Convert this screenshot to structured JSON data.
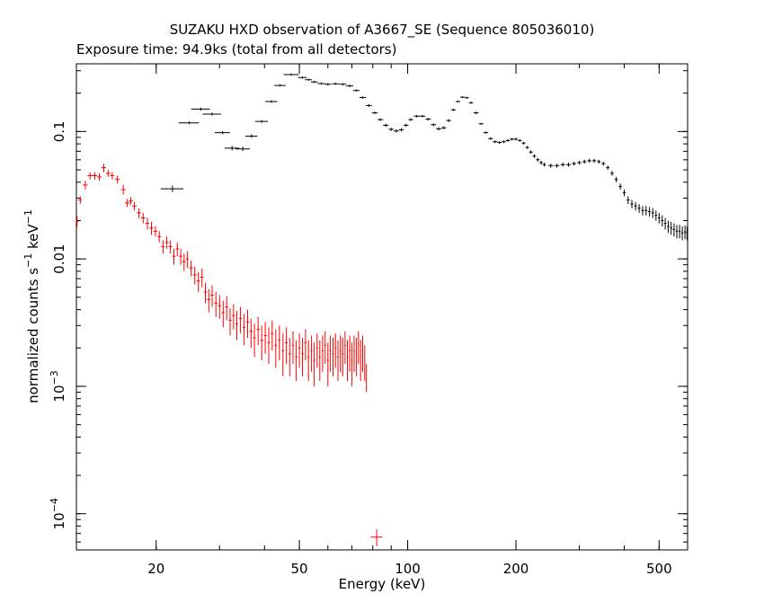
{
  "chart_data": {
    "type": "scatter",
    "title": "SUZAKU HXD observation of A3667_SE (Sequence 805036010)",
    "subtitle": "Exposure time: 94.9ks (total from all detectors)",
    "xlabel": "Energy (keV)",
    "ylabel_base": "normalized counts s",
    "ylabel_mid": " keV",
    "ylabel_sup": "−1",
    "x_scale": "log",
    "y_scale": "log",
    "xlim": [
      12,
      600
    ],
    "ylim": [
      5.2e-05,
      0.34
    ],
    "x_ticks": [
      {
        "value": 20,
        "label": "20"
      },
      {
        "value": 50,
        "label": "50"
      },
      {
        "value": 100,
        "label": "100"
      },
      {
        "value": 200,
        "label": "200"
      },
      {
        "value": 500,
        "label": "500"
      }
    ],
    "y_ticks": [
      {
        "value": 0.1,
        "label": "0.1"
      },
      {
        "value": 0.01,
        "label": "0.01"
      },
      {
        "value": 0.001,
        "label_base": "10",
        "label_exp": "−3"
      },
      {
        "value": 0.0001,
        "label_base": "10",
        "label_exp": "−4"
      }
    ],
    "series": [
      {
        "color": "#000000",
        "points": [
          [
            22.2,
            0.0355,
            1.6,
            0.002
          ],
          [
            24.7,
            0.117,
            1.6,
            0.003
          ],
          [
            26.6,
            0.15,
            1.6,
            0.004
          ],
          [
            28.6,
            0.137,
            1.7,
            0.004
          ],
          [
            30.6,
            0.098,
            1.5,
            0.003
          ],
          [
            32.5,
            0.074,
            1.5,
            0.003
          ],
          [
            34.8,
            0.073,
            1.6,
            0.003
          ],
          [
            36.8,
            0.092,
            1.4,
            0.003
          ],
          [
            39.3,
            0.12,
            1.6,
            0.003
          ],
          [
            41.8,
            0.172,
            1.6,
            0.004
          ],
          [
            44.2,
            0.23,
            1.6,
            0.005
          ],
          [
            47.5,
            0.28,
            2.3,
            0.006
          ],
          [
            51,
            0.265,
            1.4,
            0.005
          ],
          [
            53,
            0.255,
            1.2,
            0.005
          ],
          [
            55,
            0.245,
            1.2,
            0.005
          ],
          [
            57.5,
            0.238,
            1.3,
            0.005
          ],
          [
            60,
            0.235,
            1.3,
            0.005
          ],
          [
            63,
            0.237,
            1.4,
            0.005
          ],
          [
            66,
            0.235,
            1.5,
            0.005
          ],
          [
            69,
            0.228,
            1.6,
            0.005
          ],
          [
            72,
            0.21,
            1.5,
            0.004
          ],
          [
            75,
            0.185,
            1.5,
            0.004
          ],
          [
            78,
            0.16,
            1.5,
            0.004
          ],
          [
            81,
            0.14,
            1.5,
            0.003
          ],
          [
            84,
            0.124,
            1.5,
            0.003
          ],
          [
            87,
            0.112,
            1.5,
            0.003
          ],
          [
            90,
            0.104,
            1.5,
            0.003
          ],
          [
            93,
            0.101,
            1.5,
            0.003
          ],
          [
            96,
            0.103,
            1.5,
            0.003
          ],
          [
            99,
            0.112,
            1.5,
            0.003
          ],
          [
            102,
            0.124,
            1.5,
            0.003
          ],
          [
            106,
            0.132,
            2,
            0.003
          ],
          [
            110,
            0.132,
            2,
            0.003
          ],
          [
            114,
            0.125,
            2,
            0.003
          ],
          [
            118,
            0.113,
            2,
            0.003
          ],
          [
            122,
            0.105,
            2,
            0.003
          ],
          [
            126,
            0.107,
            2,
            0.003
          ],
          [
            130,
            0.122,
            2,
            0.003
          ],
          [
            134,
            0.148,
            2,
            0.003
          ],
          [
            138,
            0.172,
            2,
            0.003
          ],
          [
            142,
            0.186,
            2,
            0.003
          ],
          [
            146,
            0.184,
            2,
            0.003
          ],
          [
            150,
            0.168,
            2,
            0.003
          ],
          [
            155,
            0.14,
            2.5,
            0.003
          ],
          [
            160,
            0.115,
            2.5,
            0.002
          ],
          [
            165,
            0.098,
            2.5,
            0.002
          ],
          [
            170,
            0.088,
            2.5,
            0.002
          ],
          [
            175,
            0.083,
            2.5,
            0.002
          ],
          [
            180,
            0.082,
            2.5,
            0.002
          ],
          [
            185,
            0.083,
            2.5,
            0.002
          ],
          [
            190,
            0.085,
            2.5,
            0.002
          ],
          [
            195,
            0.087,
            2.5,
            0.002
          ],
          [
            200,
            0.087,
            2.5,
            0.002
          ],
          [
            205,
            0.085,
            2.5,
            0.002
          ],
          [
            210,
            0.081,
            2.5,
            0.002
          ],
          [
            215,
            0.075,
            2.5,
            0.002
          ],
          [
            220,
            0.069,
            2.5,
            0.002
          ],
          [
            225,
            0.064,
            2.5,
            0.002
          ],
          [
            230,
            0.06,
            2.5,
            0.002
          ],
          [
            235,
            0.057,
            2.5,
            0.002
          ],
          [
            240,
            0.055,
            2.5,
            0.002
          ],
          [
            250,
            0.054,
            4,
            0.002
          ],
          [
            260,
            0.054,
            4,
            0.002
          ],
          [
            270,
            0.055,
            4,
            0.002
          ],
          [
            280,
            0.055,
            4,
            0.002
          ],
          [
            290,
            0.056,
            4,
            0.002
          ],
          [
            300,
            0.057,
            4,
            0.002
          ],
          [
            310,
            0.058,
            4,
            0.002
          ],
          [
            320,
            0.059,
            4,
            0.002
          ],
          [
            330,
            0.059,
            4,
            0.002
          ],
          [
            340,
            0.058,
            4,
            0.002
          ],
          [
            350,
            0.056,
            4,
            0.002
          ],
          [
            360,
            0.052,
            4,
            0.002
          ],
          [
            370,
            0.047,
            4,
            0.002
          ],
          [
            380,
            0.042,
            4,
            0.002
          ],
          [
            390,
            0.037,
            4,
            0.002
          ],
          [
            400,
            0.033,
            4,
            0.002
          ],
          [
            410,
            0.029,
            4,
            0.002
          ],
          [
            420,
            0.027,
            4,
            0.002
          ],
          [
            430,
            0.026,
            4,
            0.002
          ],
          [
            440,
            0.025,
            4,
            0.002
          ],
          [
            450,
            0.024,
            4,
            0.002
          ],
          [
            460,
            0.024,
            4,
            0.002
          ],
          [
            470,
            0.0235,
            4,
            0.002
          ],
          [
            480,
            0.023,
            4,
            0.002
          ],
          [
            490,
            0.022,
            4,
            0.002
          ],
          [
            500,
            0.021,
            4,
            0.002
          ],
          [
            510,
            0.02,
            4,
            0.002
          ],
          [
            520,
            0.019,
            4,
            0.002
          ],
          [
            530,
            0.018,
            4,
            0.002
          ],
          [
            540,
            0.0175,
            4,
            0.002
          ],
          [
            550,
            0.017,
            4,
            0.002
          ],
          [
            560,
            0.0165,
            4,
            0.002
          ],
          [
            570,
            0.0165,
            4,
            0.002
          ],
          [
            580,
            0.016,
            4,
            0.002
          ],
          [
            590,
            0.0163,
            4,
            0.002
          ],
          [
            598,
            0.016,
            4,
            0.002
          ]
        ]
      },
      {
        "color": "#ff0000",
        "points": [
          [
            12.05,
            0.0197,
            0.1,
            0.002
          ],
          [
            12.3,
            0.029,
            0.15,
            0.002
          ],
          [
            12.7,
            0.038,
            0.2,
            0.003
          ],
          [
            13.1,
            0.045,
            0.2,
            0.003
          ],
          [
            13.5,
            0.045,
            0.2,
            0.003
          ],
          [
            13.9,
            0.044,
            0.2,
            0.003
          ],
          [
            14.3,
            0.052,
            0.2,
            0.004
          ],
          [
            14.7,
            0.047,
            0.2,
            0.003
          ],
          [
            15.1,
            0.045,
            0.2,
            0.003
          ],
          [
            15.6,
            0.042,
            0.25,
            0.003
          ],
          [
            16.2,
            0.035,
            0.25,
            0.003
          ],
          [
            16.6,
            0.0275,
            0.25,
            0.002
          ],
          [
            17,
            0.0285,
            0.25,
            0.002
          ],
          [
            17.4,
            0.026,
            0.25,
            0.002
          ],
          [
            17.9,
            0.023,
            0.25,
            0.002
          ],
          [
            18.4,
            0.021,
            0.25,
            0.002
          ],
          [
            18.9,
            0.019,
            0.25,
            0.002
          ],
          [
            19.4,
            0.0175,
            0.25,
            0.002
          ],
          [
            19.9,
            0.0165,
            0.25,
            0.0015
          ],
          [
            20.4,
            0.015,
            0.25,
            0.0015
          ],
          [
            20.9,
            0.0125,
            0.25,
            0.0015
          ],
          [
            21.4,
            0.0135,
            0.25,
            0.0015
          ],
          [
            21.9,
            0.0125,
            0.25,
            0.0015
          ],
          [
            22.4,
            0.0105,
            0.25,
            0.0015
          ],
          [
            22.9,
            0.012,
            0.25,
            0.0015
          ],
          [
            23.4,
            0.0105,
            0.25,
            0.0015
          ],
          [
            23.9,
            0.0095,
            0.25,
            0.0015
          ],
          [
            24.4,
            0.01,
            0.25,
            0.0015
          ],
          [
            25,
            0.0085,
            0.3,
            0.0012
          ],
          [
            25.6,
            0.0075,
            0.3,
            0.0012
          ],
          [
            26.2,
            0.0067,
            0.3,
            0.0012
          ],
          [
            26.8,
            0.0072,
            0.3,
            0.0012
          ],
          [
            27.4,
            0.0055,
            0.3,
            0.001
          ],
          [
            28,
            0.0048,
            0.3,
            0.001
          ],
          [
            28.6,
            0.0052,
            0.3,
            0.001
          ],
          [
            29.3,
            0.0045,
            0.3,
            0.001
          ],
          [
            30,
            0.0043,
            0.3,
            0.0009
          ],
          [
            30.7,
            0.0038,
            0.3,
            0.0009
          ],
          [
            31.4,
            0.0042,
            0.3,
            0.0009
          ],
          [
            32.1,
            0.0033,
            0.3,
            0.0008
          ],
          [
            32.8,
            0.0036,
            0.3,
            0.0008
          ],
          [
            33.5,
            0.0031,
            0.3,
            0.0008
          ],
          [
            34.3,
            0.0034,
            0.3,
            0.0008
          ],
          [
            35.1,
            0.0029,
            0.3,
            0.0008
          ],
          [
            35.9,
            0.0032,
            0.35,
            0.0008
          ],
          [
            36.7,
            0.0027,
            0.35,
            0.0007
          ],
          [
            37.5,
            0.0024,
            0.35,
            0.0007
          ],
          [
            38.4,
            0.0028,
            0.35,
            0.0007
          ],
          [
            39.3,
            0.0023,
            0.35,
            0.0007
          ],
          [
            40.2,
            0.0025,
            0.35,
            0.0007
          ],
          [
            41.1,
            0.0022,
            0.35,
            0.0007
          ],
          [
            42,
            0.0026,
            0.35,
            0.0007
          ],
          [
            43,
            0.0021,
            0.35,
            0.0007
          ],
          [
            44,
            0.0023,
            0.35,
            0.0007
          ],
          [
            45,
            0.0019,
            0.35,
            0.0007
          ],
          [
            46,
            0.0022,
            0.35,
            0.0007
          ],
          [
            47,
            0.0018,
            0.35,
            0.0006
          ],
          [
            48,
            0.0021,
            0.35,
            0.0006
          ],
          [
            49,
            0.0017,
            0.35,
            0.0006
          ],
          [
            50,
            0.002,
            0.35,
            0.0006
          ],
          [
            51,
            0.0018,
            0.35,
            0.0006
          ],
          [
            52,
            0.0022,
            0.35,
            0.0006
          ],
          [
            53,
            0.0017,
            0.35,
            0.0006
          ],
          [
            54,
            0.0019,
            0.35,
            0.0006
          ],
          [
            55,
            0.0016,
            0.35,
            0.0006
          ],
          [
            56,
            0.002,
            0.35,
            0.0006
          ],
          [
            57,
            0.0017,
            0.35,
            0.0006
          ],
          [
            58,
            0.0019,
            0.35,
            0.0006
          ],
          [
            59,
            0.0021,
            0.35,
            0.0006
          ],
          [
            60,
            0.0016,
            0.35,
            0.0006
          ],
          [
            61,
            0.0019,
            0.35,
            0.0006
          ],
          [
            62,
            0.0018,
            0.35,
            0.0006
          ],
          [
            63,
            0.002,
            0.35,
            0.0006
          ],
          [
            64,
            0.0017,
            0.35,
            0.0006
          ],
          [
            65,
            0.0019,
            0.35,
            0.0006
          ],
          [
            66,
            0.0018,
            0.35,
            0.0006
          ],
          [
            67,
            0.0021,
            0.35,
            0.0006
          ],
          [
            68,
            0.0017,
            0.35,
            0.0006
          ],
          [
            69,
            0.0019,
            0.35,
            0.0006
          ],
          [
            70,
            0.0016,
            0.35,
            0.0006
          ],
          [
            71,
            0.0019,
            0.35,
            0.0006
          ],
          [
            72,
            0.0018,
            0.35,
            0.0006
          ],
          [
            73,
            0.0021,
            0.3,
            0.0006
          ],
          [
            74,
            0.0017,
            0.3,
            0.0006
          ],
          [
            75,
            0.0019,
            0.3,
            0.0006
          ],
          [
            76,
            0.0016,
            0.3,
            0.0005
          ],
          [
            76.8,
            0.0012,
            0.2,
            0.0003
          ],
          [
            82,
            6.55e-05,
            3,
            1e-05
          ]
        ]
      }
    ]
  }
}
